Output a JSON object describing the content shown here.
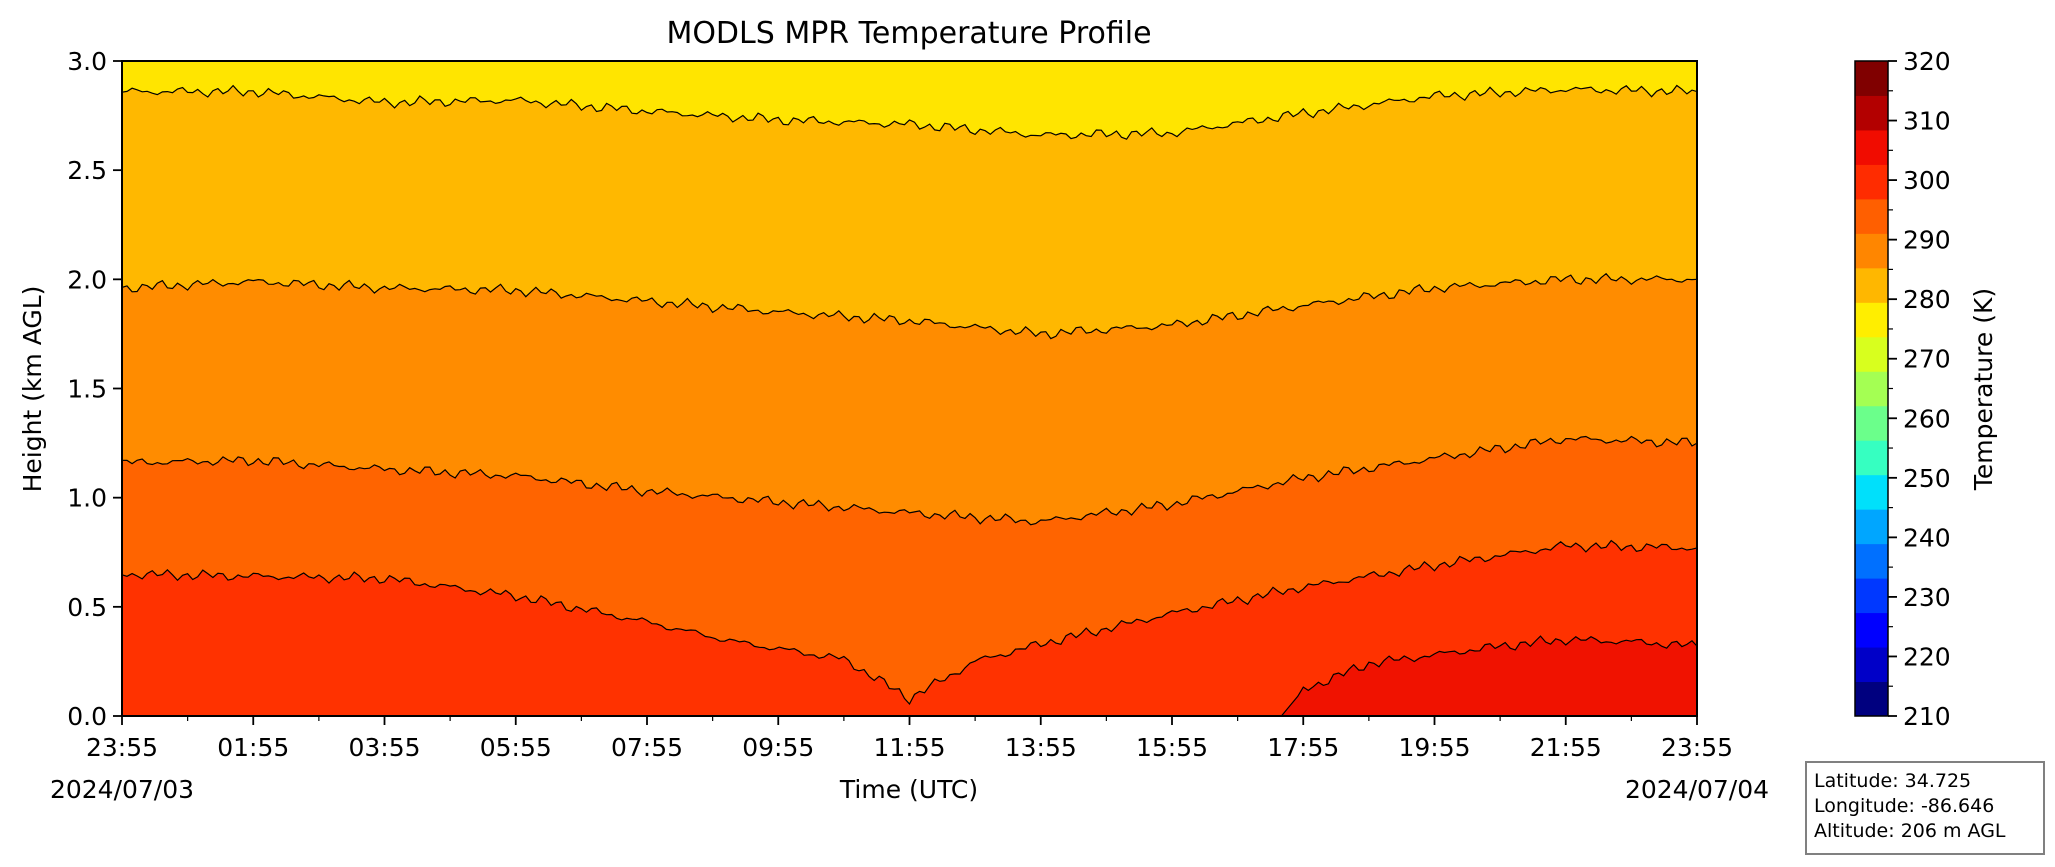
{
  "chart_data": {
    "type": "heatmap",
    "subtype": "filled-contour",
    "title": "MODLS MPR Temperature Profile",
    "xlabel": "Time (UTC)",
    "ylabel": "Height (km AGL)",
    "x_ticks": [
      "23:55",
      "01:55",
      "03:55",
      "05:55",
      "07:55",
      "09:55",
      "11:55",
      "13:55",
      "15:55",
      "17:55",
      "19:55",
      "21:55",
      "23:55"
    ],
    "x_date_labels": {
      "start": "2024/07/03",
      "end": "2024/07/04"
    },
    "xlim": [
      "2024/07/03 23:55",
      "2024/07/04 23:55"
    ],
    "y_ticks": [
      "0.0",
      "0.5",
      "1.0",
      "1.5",
      "2.0",
      "2.5",
      "3.0"
    ],
    "ylim": [
      0,
      3.0
    ],
    "grid": false,
    "colorbar": {
      "label": "Temperature (K)",
      "min": 210,
      "max": 320,
      "step": 5,
      "tick_labels": [
        "210",
        "220",
        "230",
        "240",
        "250",
        "260",
        "270",
        "280",
        "290",
        "300",
        "310",
        "320"
      ],
      "colors": [
        "#00007f",
        "#0000c8",
        "#0000ff",
        "#0038ff",
        "#0070ff",
        "#00a6ff",
        "#00e0fb",
        "#36ffc1",
        "#6bff8b",
        "#a4ff53",
        "#d8ff1e",
        "#ffee00",
        "#ffb700",
        "#ff8600",
        "#ff5f00",
        "#ff2c00",
        "#f10c00",
        "#b30000",
        "#800000"
      ]
    },
    "bands": [
      {
        "range": [
          280,
          285
        ],
        "color": "#ffe500"
      },
      {
        "range": [
          285,
          290
        ],
        "color": "#ffb800"
      },
      {
        "range": [
          290,
          295
        ],
        "color": "#ff8c00"
      },
      {
        "range": [
          295,
          300
        ],
        "color": "#ff6400"
      },
      {
        "range": [
          300,
          305
        ],
        "color": "#ff3200"
      },
      {
        "range": [
          305,
          310
        ],
        "color": "#f01200"
      }
    ],
    "contours": [
      {
        "level": 285,
        "x": [
          "23:55",
          "01:55",
          "03:55",
          "05:55",
          "07:55",
          "09:55",
          "11:55",
          "13:55",
          "15:55",
          "17:55",
          "19:55",
          "21:55",
          "23:55"
        ],
        "height_km": [
          2.86,
          2.86,
          2.81,
          2.82,
          2.77,
          2.73,
          2.71,
          2.66,
          2.67,
          2.76,
          2.84,
          2.87,
          2.86
        ]
      },
      {
        "level": 290,
        "x": [
          "23:55",
          "01:55",
          "03:55",
          "05:55",
          "07:55",
          "09:55",
          "11:55",
          "13:55",
          "15:55",
          "17:55",
          "19:55",
          "21:55",
          "23:55"
        ],
        "height_km": [
          1.96,
          1.99,
          1.96,
          1.95,
          1.9,
          1.85,
          1.81,
          1.75,
          1.79,
          1.88,
          1.96,
          2.0,
          2.0
        ]
      },
      {
        "level": 295,
        "x": [
          "23:55",
          "01:55",
          "03:55",
          "05:55",
          "07:55",
          "09:55",
          "11:55",
          "13:55",
          "15:55",
          "17:55",
          "19:55",
          "21:55",
          "23:55"
        ],
        "height_km": [
          1.16,
          1.17,
          1.13,
          1.1,
          1.03,
          0.98,
          0.93,
          0.89,
          0.97,
          1.09,
          1.18,
          1.27,
          1.25
        ]
      },
      {
        "level": 300,
        "x": [
          "23:55",
          "01:55",
          "03:55",
          "05:55",
          "07:55",
          "09:15",
          "10:55",
          "11:55",
          "12:55",
          "13:55",
          "15:55",
          "17:55",
          "19:55",
          "21:55",
          "23:55"
        ],
        "height_km": [
          0.65,
          0.64,
          0.63,
          0.55,
          0.43,
          0.34,
          0.26,
          0.08,
          0.25,
          0.33,
          0.47,
          0.59,
          0.69,
          0.78,
          0.77
        ]
      },
      {
        "level": 305,
        "x": [
          "17:35",
          "17:55",
          "18:55",
          "19:55",
          "20:55",
          "21:55",
          "22:55",
          "23:55"
        ],
        "height_km": [
          0.0,
          0.12,
          0.24,
          0.28,
          0.32,
          0.35,
          0.34,
          0.32
        ]
      }
    ]
  },
  "info": {
    "latitude": "Latitude: 34.725",
    "longitude": "Longitude: -86.646",
    "altitude": "Altitude: 206 m AGL"
  }
}
